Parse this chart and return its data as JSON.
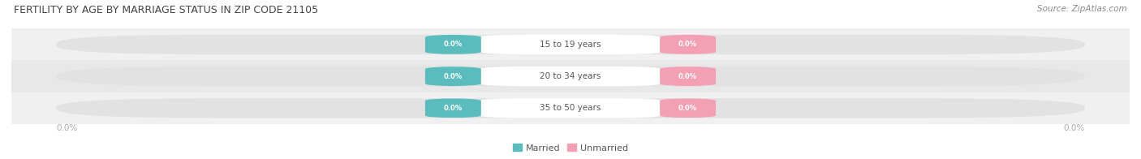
{
  "title": "FERTILITY BY AGE BY MARRIAGE STATUS IN ZIP CODE 21105",
  "source": "Source: ZipAtlas.com",
  "age_groups": [
    "15 to 19 years",
    "20 to 34 years",
    "35 to 50 years"
  ],
  "married_values": [
    0.0,
    0.0,
    0.0
  ],
  "unmarried_values": [
    0.0,
    0.0,
    0.0
  ],
  "married_color": "#5bbcbe",
  "unmarried_color": "#f4a0b4",
  "bar_bg_color": "#e2e2e2",
  "row_bg_even": "#f0f0f0",
  "row_bg_odd": "#e8e8e8",
  "title_color": "#444444",
  "label_color": "#555555",
  "axis_label_color": "#aaaaaa",
  "source_color": "#888888",
  "left_axis_val": "0.0%",
  "right_axis_val": "0.0%",
  "legend_married": "Married",
  "legend_unmarried": "Unmarried",
  "bg_color": "#ffffff"
}
